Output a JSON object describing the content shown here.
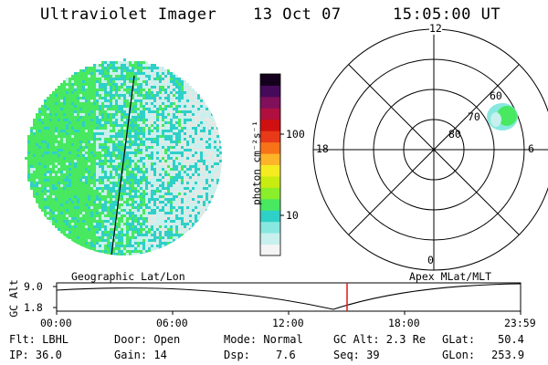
{
  "header": {
    "title": "Ultraviolet Imager",
    "date": "13 Oct 07",
    "time": "15:05:00 UT"
  },
  "colorbar": {
    "label": "photon cm⁻²s⁻¹",
    "ticks": [
      "100",
      "10"
    ],
    "colors": [
      "#f4f4f4",
      "#c8f0ee",
      "#88e8e0",
      "#2ed0c8",
      "#48e860",
      "#8aee2a",
      "#c8ec10",
      "#f4ec20",
      "#fdb428",
      "#f87218",
      "#e83a18",
      "#d01010",
      "#b01040",
      "#80105c",
      "#460a5a",
      "#14001c"
    ]
  },
  "geo_map": {
    "label": "Geographic Lat/Lon",
    "colors": {
      "dense": "#48e860",
      "sparse": "#2ed0c8",
      "faint": "#c8f0ee",
      "grey": "#e4e8e4",
      "terminator": "#000000"
    }
  },
  "polar_plot": {
    "label": "Apex MLat/MLT",
    "hour_labels": [
      "12",
      "18",
      "6",
      "0"
    ],
    "lat_labels": [
      "60",
      "70",
      "80"
    ]
  },
  "timeline": {
    "axis_label": "GC Alt",
    "y_ticks": [
      "9.0",
      "1.8"
    ],
    "x_ticks": [
      "00:00",
      "06:00",
      "12:00",
      "18:00",
      "23:59"
    ],
    "marker_color": "#e01818"
  },
  "info": {
    "flt": "Flt: LBHL",
    "ip": "IP: 36.0",
    "door": "Door: Open",
    "gain": "Gain: 14",
    "mode": "Mode: Normal",
    "dsp_label": "Dsp:",
    "dsp_value": "7.6",
    "gc_alt": "GC Alt: 2.3 Re",
    "seq": "Seq: 39",
    "glat_label": "GLat:",
    "glat_value": "50.4",
    "glon_label": "GLon:",
    "glon_value": "253.9"
  }
}
